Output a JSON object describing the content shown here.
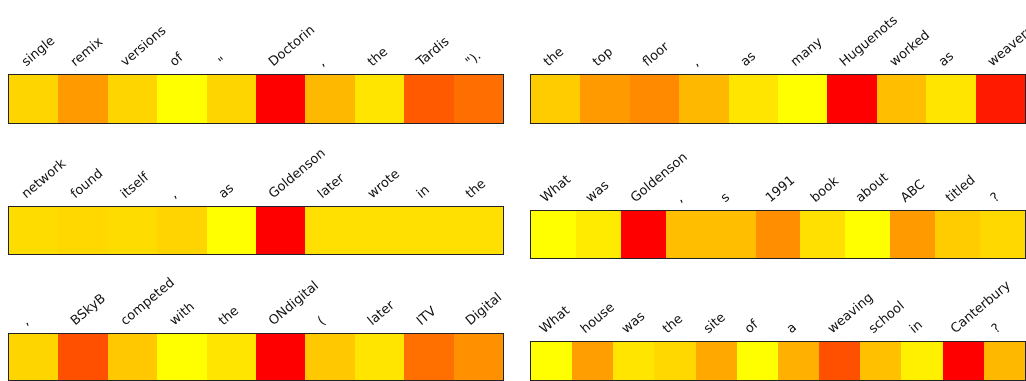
{
  "chart_data": {
    "type": "heatmap",
    "colormap": "autumn_r",
    "value_range": [
      0,
      1
    ],
    "panels": [
      {
        "tokens": [
          "single",
          "remix",
          "versions",
          "of",
          "\"",
          "Doctorin",
          ",",
          "the",
          "Tardis",
          "\")."
        ],
        "values": [
          0.35,
          0.55,
          0.3,
          0.05,
          0.3,
          1.0,
          0.4,
          0.2,
          0.75,
          0.65
        ],
        "colors": [
          "#FFD500",
          "#FF9A00",
          "#FFD500",
          "#FFFF00",
          "#FFD500",
          "#FF0000",
          "#FFB800",
          "#FFE500",
          "#FF5A00",
          "#FF6E00"
        ]
      },
      {
        "tokens": [
          "the",
          "top",
          "floor",
          ",",
          "as",
          "many",
          "Huguenots",
          "worked",
          "as",
          "weavers"
        ],
        "values": [
          0.3,
          0.5,
          0.6,
          0.4,
          0.2,
          0.05,
          1.0,
          0.35,
          0.2,
          0.95
        ],
        "colors": [
          "#FFCC00",
          "#FF9A00",
          "#FF8A00",
          "#FFB800",
          "#FFE500",
          "#FFFF00",
          "#FF0000",
          "#FFBF00",
          "#FFE500",
          "#FF1A00"
        ]
      },
      {
        "tokens": [
          "network",
          "found",
          "itself",
          ",",
          "as",
          "Goldenson",
          "later",
          "wrote",
          "in",
          "the"
        ],
        "values": [
          0.15,
          0.2,
          0.15,
          0.25,
          0.05,
          1.0,
          0.15,
          0.15,
          0.15,
          0.15
        ],
        "colors": [
          "#FFDC00",
          "#FFD800",
          "#FFDC00",
          "#FFD400",
          "#FFFF00",
          "#FF0000",
          "#FFE000",
          "#FFE000",
          "#FFE000",
          "#FFE000"
        ]
      },
      {
        "tokens": [
          "What",
          "was",
          "Goldenson",
          ",",
          "s",
          "1991",
          "book",
          "about",
          "ABC",
          "titled",
          "?"
        ],
        "values": [
          0.05,
          0.15,
          1.0,
          0.35,
          0.35,
          0.6,
          0.2,
          0.05,
          0.5,
          0.25,
          0.2
        ],
        "colors": [
          "#FFFF00",
          "#FFEB00",
          "#FF0000",
          "#FFBF00",
          "#FFBF00",
          "#FF8F00",
          "#FFE000",
          "#FFFF00",
          "#FF9A00",
          "#FFCC00",
          "#FFD800"
        ]
      },
      {
        "tokens": [
          ",",
          "BSkyB",
          "competed",
          "with",
          "the",
          "ONdigital",
          "(",
          "later",
          "ITV",
          "Digital"
        ],
        "values": [
          0.3,
          0.75,
          0.3,
          0.05,
          0.2,
          1.0,
          0.3,
          0.2,
          0.65,
          0.55
        ],
        "colors": [
          "#FFD500",
          "#FF5000",
          "#FFC800",
          "#FFFF00",
          "#FFE500",
          "#FF0000",
          "#FFC800",
          "#FFE500",
          "#FF7000",
          "#FF9000"
        ]
      },
      {
        "tokens": [
          "What",
          "house",
          "was",
          "the",
          "site",
          "of",
          "a",
          "weaving",
          "school",
          "in",
          "Canterbury",
          "?"
        ],
        "values": [
          0.05,
          0.55,
          0.15,
          0.2,
          0.5,
          0.05,
          0.45,
          0.75,
          0.35,
          0.1,
          1.0,
          0.4
        ],
        "colors": [
          "#FFFF00",
          "#FF9E00",
          "#FFE500",
          "#FFD800",
          "#FFA800",
          "#FFFF00",
          "#FFB000",
          "#FF5000",
          "#FFC000",
          "#FFF000",
          "#FF0000",
          "#FFB800"
        ]
      }
    ]
  }
}
